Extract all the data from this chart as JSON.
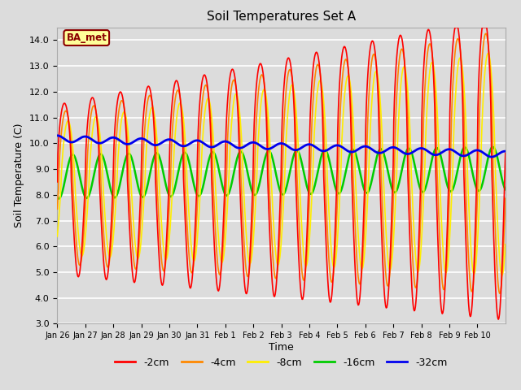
{
  "title": "Soil Temperatures Set A",
  "xlabel": "Time",
  "ylabel": "Soil Temperature (C)",
  "ylim": [
    3.0,
    14.5
  ],
  "yticks": [
    3.0,
    4.0,
    5.0,
    6.0,
    7.0,
    8.0,
    9.0,
    10.0,
    11.0,
    12.0,
    13.0,
    14.0
  ],
  "bg_color": "#dcdcdc",
  "grid_color": "#ffffff",
  "annotation_text": "BA_met",
  "annotation_bg": "#ffff99",
  "annotation_border": "#8B0000",
  "series_colors": {
    "-2cm": "#ff0000",
    "-4cm": "#ff8800",
    "-8cm": "#ffee00",
    "-16cm": "#00cc00",
    "-32cm": "#0000ee"
  },
  "series_lw": {
    "-2cm": 1.2,
    "-4cm": 1.2,
    "-8cm": 1.2,
    "-16cm": 1.8,
    "-32cm": 2.0
  },
  "xtick_labels": [
    "Jan 26",
    "Jan 27",
    "Jan 28",
    "Jan 29",
    "Jan 30",
    "Jan 31",
    "Feb 1",
    "Feb 2",
    "Feb 3",
    "Feb 4",
    "Feb 5",
    "Feb 6",
    "Feb 7",
    "Feb 8",
    "Feb 9",
    "Feb 10"
  ],
  "num_days": 16,
  "legend_entries": [
    "-2cm",
    "-4cm",
    "-8cm",
    "-16cm",
    "-32cm"
  ],
  "legend_colors": [
    "#ff0000",
    "#ff8800",
    "#ffee00",
    "#00cc00",
    "#0000ee"
  ]
}
